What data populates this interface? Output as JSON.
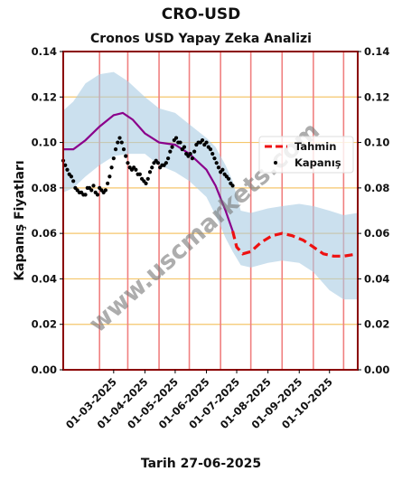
{
  "page": {
    "title": "CRO-USD",
    "subtitle": "Cronos USD Yapay Zeka Analizi",
    "xcaption": "Tarih 27-06-2025",
    "ylabel": "Kapanış Fiyatları",
    "watermark": "www.uscmarkets.com"
  },
  "chart_data": {
    "type": "line",
    "title": "Cronos USD Yapay Zeka Analizi",
    "xlabel": "Tarih 27-06-2025",
    "ylabel": "Kapanış Fiyatları",
    "xlim": [
      "2025-01-10",
      "2025-10-29"
    ],
    "ylim": [
      0,
      0.14
    ],
    "y_ticks": [
      0.0,
      0.02,
      0.04,
      0.06,
      0.08,
      0.1,
      0.12,
      0.14
    ],
    "y_tick_labels": [
      "0.00",
      "0.02",
      "0.04",
      "0.06",
      "0.08",
      "0.10",
      "0.12",
      "0.14"
    ],
    "x_ticks": [
      "2025-03-01",
      "2025-04-01",
      "2025-05-01",
      "2025-06-01",
      "2025-07-01",
      "2025-08-01",
      "2025-09-01",
      "2025-10-01"
    ],
    "x_tick_labels": [
      "01-03-2025",
      "01-04-2025",
      "01-05-2025",
      "01-06-2025",
      "01-07-2025",
      "01-08-2025",
      "01-09-2025",
      "01-10-2025"
    ],
    "vertical_lines": [
      "2025-02-15",
      "2025-03-15",
      "2025-04-15",
      "2025-05-15",
      "2025-06-15",
      "2025-07-15",
      "2025-08-15",
      "2025-09-15",
      "2025-10-15"
    ],
    "grid": "horizontal",
    "legend": {
      "position": "right",
      "entries": [
        {
          "label": "Tahmin",
          "color": "#ee1111",
          "style": "dashed"
        },
        {
          "label": "Kapanış",
          "color": "#000000",
          "style": "dots"
        }
      ]
    },
    "colors": {
      "band": "#a9cce3",
      "trend": "#8b008b",
      "forecast": "#ee1111",
      "close": "#000000",
      "frame": "#8b0000",
      "grid": "#f5c66b",
      "vline": "#f08080"
    },
    "band": {
      "x": [
        "2025-01-10",
        "2025-01-20",
        "2025-02-01",
        "2025-02-15",
        "2025-03-01",
        "2025-03-15",
        "2025-04-01",
        "2025-04-15",
        "2025-05-01",
        "2025-05-15",
        "2025-06-01",
        "2025-06-10",
        "2025-06-20",
        "2025-06-27",
        "2025-07-05",
        "2025-07-15",
        "2025-08-01",
        "2025-08-15",
        "2025-09-01",
        "2025-09-15",
        "2025-10-01",
        "2025-10-15",
        "2025-10-29"
      ],
      "upper": [
        0.114,
        0.118,
        0.126,
        0.13,
        0.131,
        0.127,
        0.12,
        0.115,
        0.113,
        0.108,
        0.102,
        0.098,
        0.09,
        0.083,
        0.07,
        0.069,
        0.071,
        0.072,
        0.073,
        0.072,
        0.07,
        0.068,
        0.069
      ],
      "lower": [
        0.078,
        0.08,
        0.085,
        0.09,
        0.094,
        0.095,
        0.095,
        0.09,
        0.087,
        0.083,
        0.076,
        0.068,
        0.058,
        0.052,
        0.046,
        0.045,
        0.047,
        0.048,
        0.047,
        0.043,
        0.035,
        0.031,
        0.031
      ]
    },
    "series": [
      {
        "name": "",
        "role": "trend",
        "x": [
          "2025-01-10",
          "2025-01-20",
          "2025-02-01",
          "2025-02-15",
          "2025-03-01",
          "2025-03-10",
          "2025-03-20",
          "2025-04-01",
          "2025-04-15",
          "2025-05-01",
          "2025-05-15",
          "2025-06-01",
          "2025-06-10",
          "2025-06-20",
          "2025-06-27"
        ],
        "values": [
          0.097,
          0.097,
          0.101,
          0.107,
          0.112,
          0.113,
          0.11,
          0.104,
          0.1,
          0.099,
          0.095,
          0.088,
          0.081,
          0.07,
          0.061
        ]
      },
      {
        "name": "Tahmin",
        "role": "forecast",
        "x": [
          "2025-06-27",
          "2025-07-01",
          "2025-07-07",
          "2025-07-15",
          "2025-07-25",
          "2025-08-05",
          "2025-08-15",
          "2025-08-25",
          "2025-09-05",
          "2025-09-15",
          "2025-09-25",
          "2025-10-05",
          "2025-10-15",
          "2025-10-29"
        ],
        "values": [
          0.061,
          0.054,
          0.051,
          0.052,
          0.056,
          0.059,
          0.06,
          0.059,
          0.057,
          0.054,
          0.051,
          0.05,
          0.05,
          0.051
        ]
      },
      {
        "name": "Kapanış",
        "role": "close",
        "x": [
          "2025-01-10",
          "2025-01-12",
          "2025-01-14",
          "2025-01-16",
          "2025-01-18",
          "2025-01-20",
          "2025-01-22",
          "2025-01-24",
          "2025-01-26",
          "2025-01-28",
          "2025-01-30",
          "2025-02-01",
          "2025-02-03",
          "2025-02-05",
          "2025-02-07",
          "2025-02-09",
          "2025-02-11",
          "2025-02-13",
          "2025-02-15",
          "2025-02-17",
          "2025-02-19",
          "2025-02-21",
          "2025-02-23",
          "2025-02-25",
          "2025-02-27",
          "2025-03-01",
          "2025-03-03",
          "2025-03-05",
          "2025-03-07",
          "2025-03-09",
          "2025-03-11",
          "2025-03-13",
          "2025-03-15",
          "2025-03-17",
          "2025-03-19",
          "2025-03-21",
          "2025-03-23",
          "2025-03-25",
          "2025-03-27",
          "2025-03-29",
          "2025-03-31",
          "2025-04-02",
          "2025-04-04",
          "2025-04-06",
          "2025-04-08",
          "2025-04-10",
          "2025-04-12",
          "2025-04-14",
          "2025-04-16",
          "2025-04-18",
          "2025-04-20",
          "2025-04-22",
          "2025-04-24",
          "2025-04-26",
          "2025-04-28",
          "2025-04-30",
          "2025-05-02",
          "2025-05-04",
          "2025-05-06",
          "2025-05-08",
          "2025-05-10",
          "2025-05-12",
          "2025-05-14",
          "2025-05-16",
          "2025-05-18",
          "2025-05-20",
          "2025-05-22",
          "2025-05-24",
          "2025-05-26",
          "2025-05-28",
          "2025-05-30",
          "2025-06-01",
          "2025-06-03",
          "2025-06-05",
          "2025-06-07",
          "2025-06-09",
          "2025-06-11",
          "2025-06-13",
          "2025-06-15",
          "2025-06-17",
          "2025-06-19",
          "2025-06-21",
          "2025-06-23",
          "2025-06-25",
          "2025-06-27"
        ],
        "values": [
          0.092,
          0.09,
          0.088,
          0.086,
          0.085,
          0.083,
          0.08,
          0.079,
          0.078,
          0.078,
          0.077,
          0.077,
          0.08,
          0.08,
          0.079,
          0.081,
          0.078,
          0.077,
          0.08,
          0.079,
          0.078,
          0.079,
          0.082,
          0.085,
          0.089,
          0.093,
          0.097,
          0.1,
          0.102,
          0.1,
          0.097,
          0.094,
          0.091,
          0.089,
          0.088,
          0.089,
          0.088,
          0.086,
          0.086,
          0.084,
          0.083,
          0.082,
          0.084,
          0.087,
          0.089,
          0.091,
          0.092,
          0.091,
          0.089,
          0.09,
          0.09,
          0.091,
          0.093,
          0.096,
          0.098,
          0.101,
          0.102,
          0.1,
          0.1,
          0.097,
          0.098,
          0.095,
          0.094,
          0.095,
          0.093,
          0.096,
          0.099,
          0.1,
          0.1,
          0.101,
          0.099,
          0.1,
          0.098,
          0.097,
          0.095,
          0.093,
          0.091,
          0.089,
          0.087,
          0.088,
          0.086,
          0.085,
          0.084,
          0.082,
          0.081
        ]
      }
    ]
  }
}
